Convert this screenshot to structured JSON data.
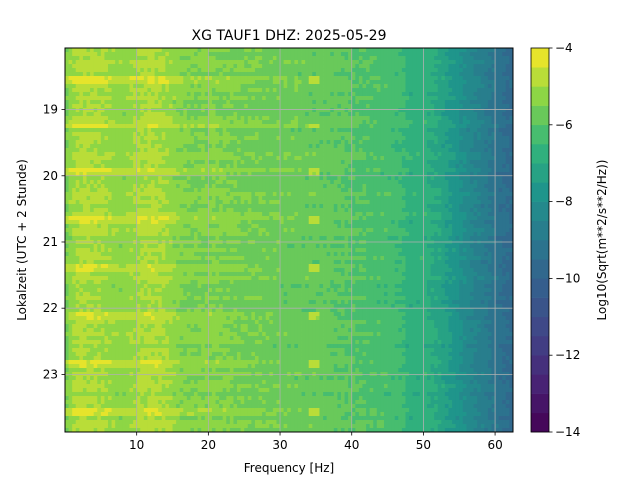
{
  "chart_data": {
    "type": "heatmap",
    "title": "XG TAUF1  DHZ: 2025-05-29",
    "xlabel": "Frequency [Hz]",
    "ylabel": "Lokalzeit (UTC + 2 Stunde)",
    "xlim": [
      0,
      62.5
    ],
    "ylim": [
      18.07,
      23.87
    ],
    "y_inverted": true,
    "xticks": [
      10,
      20,
      30,
      40,
      50,
      60
    ],
    "yticks": [
      19,
      20,
      21,
      22,
      23
    ],
    "grid": true,
    "colormap": "viridis",
    "colorbar": {
      "label": "Log10(Sqrt(m**2/s**2/Hz))",
      "range": [
        -14,
        -4
      ],
      "ticks": [
        -14,
        -12,
        -10,
        -8,
        -6,
        -4
      ],
      "levels": 20
    },
    "frequency_profile": {
      "freq_hz": [
        0,
        1,
        2,
        3,
        5,
        8,
        10,
        12,
        14,
        16,
        18,
        20,
        25,
        30,
        34,
        36,
        40,
        44,
        47,
        48,
        50,
        52,
        54,
        56,
        58,
        60,
        62.5
      ],
      "log_value": [
        -5.6,
        -5.1,
        -4.9,
        -4.9,
        -5.0,
        -5.3,
        -5.0,
        -4.9,
        -5.0,
        -5.4,
        -5.5,
        -5.4,
        -5.6,
        -5.7,
        -5.8,
        -5.8,
        -6.0,
        -6.2,
        -6.4,
        -6.8,
        -6.7,
        -7.1,
        -7.6,
        -8.2,
        -8.7,
        -9.2,
        -9.7
      ]
    },
    "time_range_local_hours": [
      18.07,
      23.87
    ],
    "line_at_freq_hz": 34.7,
    "bursts_local_hours": [
      18.55,
      19.25,
      19.95,
      20.68,
      21.4,
      22.13,
      22.83,
      23.55
    ],
    "bursts_strength": 0.8
  }
}
